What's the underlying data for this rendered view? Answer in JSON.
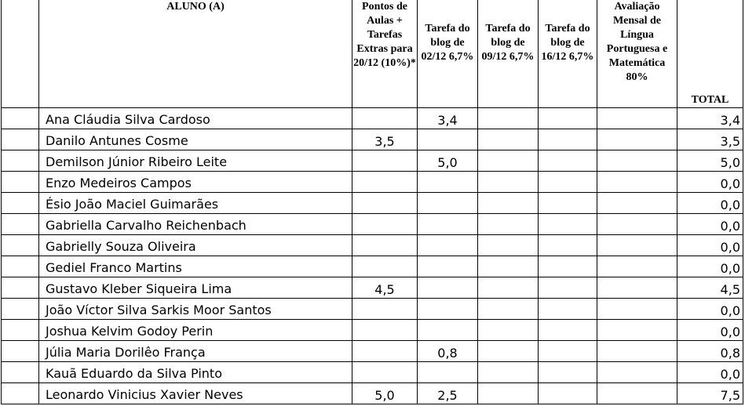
{
  "headers": {
    "blank": "",
    "aluno": "ALUNO (A)",
    "pontos": "Pontos de Aulas + Tarefas Extras para 20/12 (10%)*",
    "blog1": "Tarefa do blog de 02/12 6,7%",
    "blog2": "Tarefa do blog de 09/12 6,7%",
    "blog3": "Tarefa do blog de 16/12 6,7%",
    "avaliacao": "Avaliação Mensal de Língua Portuguesa e Matemática 80%",
    "total": "TOTAL"
  },
  "rows": [
    {
      "name": "Ana Cláudia Silva Cardoso",
      "pontos": "",
      "blog1": "3,4",
      "blog2": "",
      "blog3": "",
      "avaliacao": "",
      "total": "3,4"
    },
    {
      "name": "Danilo Antunes Cosme",
      "pontos": "3,5",
      "blog1": "",
      "blog2": "",
      "blog3": "",
      "avaliacao": "",
      "total": "3,5"
    },
    {
      "name": "Demilson Júnior Ribeiro Leite",
      "pontos": "",
      "blog1": "5,0",
      "blog2": "",
      "blog3": "",
      "avaliacao": "",
      "total": "5,0"
    },
    {
      "name": "Enzo Medeiros Campos",
      "pontos": "",
      "blog1": "",
      "blog2": "",
      "blog3": "",
      "avaliacao": "",
      "total": "0,0"
    },
    {
      "name": "Ésio João Maciel Guimarães",
      "pontos": "",
      "blog1": "",
      "blog2": "",
      "blog3": "",
      "avaliacao": "",
      "total": "0,0"
    },
    {
      "name": "Gabriella Carvalho Reichenbach",
      "pontos": "",
      "blog1": "",
      "blog2": "",
      "blog3": "",
      "avaliacao": "",
      "total": "0,0"
    },
    {
      "name": "Gabrielly Souza Oliveira",
      "pontos": "",
      "blog1": "",
      "blog2": "",
      "blog3": "",
      "avaliacao": "",
      "total": "0,0"
    },
    {
      "name": "Gediel Franco Martins",
      "pontos": "",
      "blog1": "",
      "blog2": "",
      "blog3": "",
      "avaliacao": "",
      "total": "0,0"
    },
    {
      "name": "Gustavo Kleber Siqueira Lima",
      "pontos": "4,5",
      "blog1": "",
      "blog2": "",
      "blog3": "",
      "avaliacao": "",
      "total": "4,5"
    },
    {
      "name": "João Víctor Silva Sarkis Moor Santos",
      "pontos": "",
      "blog1": "",
      "blog2": "",
      "blog3": "",
      "avaliacao": "",
      "total": "0,0"
    },
    {
      "name": "Joshua Kelvim Godoy Perin",
      "pontos": "",
      "blog1": "",
      "blog2": "",
      "blog3": "",
      "avaliacao": "",
      "total": "0,0"
    },
    {
      "name": "Júlia Maria Dorilêo França",
      "pontos": "",
      "blog1": "0,8",
      "blog2": "",
      "blog3": "",
      "avaliacao": "",
      "total": "0,8"
    },
    {
      "name": "Kauã Eduardo da Silva Pinto",
      "pontos": "",
      "blog1": "",
      "blog2": "",
      "blog3": "",
      "avaliacao": "",
      "total": "0,0"
    },
    {
      "name": "Leonardo Vinicius Xavier Neves",
      "pontos": "5,0",
      "blog1": "2,5",
      "blog2": "",
      "blog3": "",
      "avaliacao": "",
      "total": "7,5"
    }
  ]
}
